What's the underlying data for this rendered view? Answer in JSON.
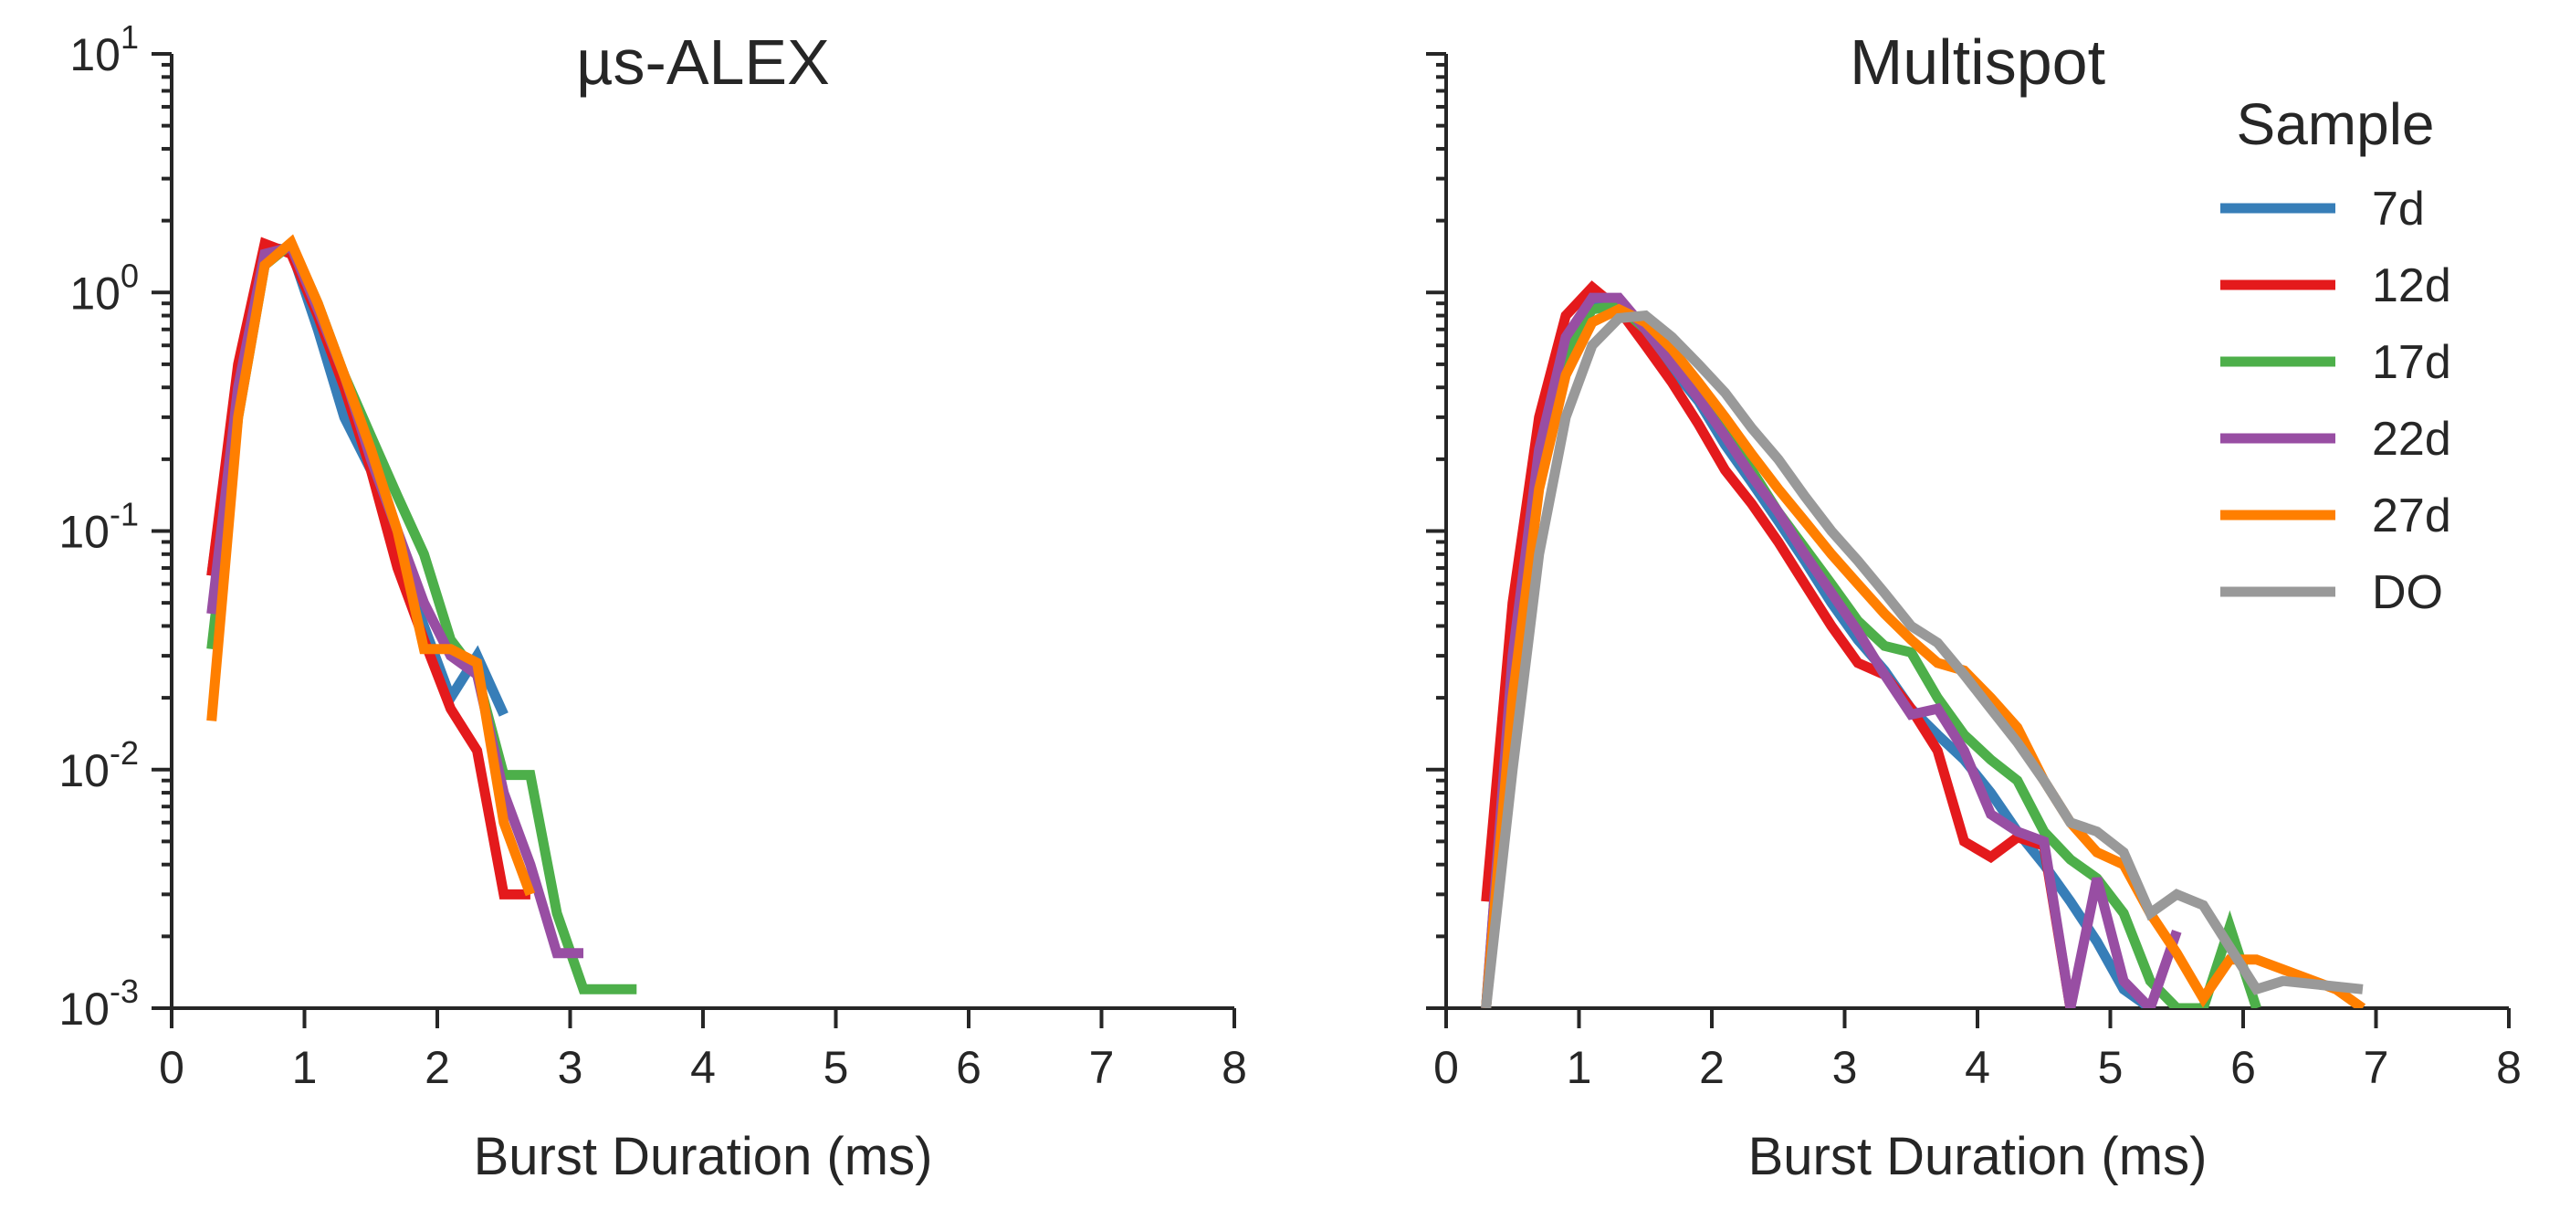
{
  "chart_data": [
    {
      "type": "line",
      "title": "µs-ALEX",
      "xlabel": "Burst Duration (ms)",
      "ylabel": "",
      "xlim": [
        0,
        8
      ],
      "ylim": [
        0.001,
        10
      ],
      "yscale": "log",
      "xticks": [
        0,
        1,
        2,
        3,
        4,
        5,
        6,
        7,
        8
      ],
      "yticks": [
        {
          "value": 10,
          "base": "10",
          "exp": "1"
        },
        {
          "value": 1,
          "base": "10",
          "exp": "0"
        },
        {
          "value": 0.1,
          "base": "10",
          "exp": "-1"
        },
        {
          "value": 0.01,
          "base": "10",
          "exp": "-2"
        },
        {
          "value": 0.001,
          "base": "10",
          "exp": "-3"
        }
      ],
      "series": [
        {
          "color": "#377eb8",
          "x": [
            0.3,
            0.5,
            0.7,
            0.9,
            1.1,
            1.3,
            1.5,
            1.7,
            1.9,
            2.1,
            2.3,
            2.5
          ],
          "y": [
            0.065,
            0.45,
            1.55,
            1.5,
            0.7,
            0.3,
            0.18,
            0.08,
            0.04,
            0.02,
            0.03,
            0.017
          ]
        },
        {
          "color": "#e41a1c",
          "x": [
            0.3,
            0.5,
            0.7,
            0.9,
            1.1,
            1.3,
            1.5,
            1.7,
            1.9,
            2.1,
            2.3,
            2.5,
            2.7
          ],
          "y": [
            0.065,
            0.5,
            1.6,
            1.45,
            0.8,
            0.4,
            0.18,
            0.07,
            0.035,
            0.018,
            0.012,
            0.003,
            0.003
          ]
        },
        {
          "color": "#4daf4a",
          "x": [
            0.3,
            0.5,
            0.7,
            0.9,
            1.1,
            1.3,
            1.5,
            1.7,
            1.9,
            2.1,
            2.3,
            2.5,
            2.7,
            2.9,
            3.1,
            3.3,
            3.5
          ],
          "y": [
            0.032,
            0.3,
            1.3,
            1.6,
            0.9,
            0.45,
            0.25,
            0.14,
            0.08,
            0.035,
            0.025,
            0.0095,
            0.0095,
            0.0025,
            0.0012,
            0.0012,
            0.0012
          ]
        },
        {
          "color": "#984ea3",
          "x": [
            0.3,
            0.5,
            0.7,
            0.9,
            1.1,
            1.3,
            1.5,
            1.7,
            1.9,
            2.1,
            2.3,
            2.5,
            2.7,
            2.9,
            3.1
          ],
          "y": [
            0.045,
            0.4,
            1.45,
            1.55,
            0.85,
            0.45,
            0.2,
            0.1,
            0.05,
            0.03,
            0.025,
            0.008,
            0.004,
            0.0017,
            0.0017
          ]
        },
        {
          "color": "#ff7f00",
          "x": [
            0.3,
            0.5,
            0.7,
            0.9,
            1.1,
            1.3,
            1.5,
            1.7,
            1.9,
            2.1,
            2.3,
            2.5,
            2.7
          ],
          "y": [
            0.016,
            0.3,
            1.3,
            1.62,
            0.9,
            0.45,
            0.22,
            0.1,
            0.032,
            0.032,
            0.028,
            0.006,
            0.003
          ]
        }
      ]
    },
    {
      "type": "line",
      "title": "Multispot",
      "xlabel": "Burst Duration (ms)",
      "ylabel": "",
      "xlim": [
        0,
        8
      ],
      "ylim": [
        0.001,
        10
      ],
      "yscale": "log",
      "xticks": [
        0,
        1,
        2,
        3,
        4,
        5,
        6,
        7,
        8
      ],
      "legend": {
        "title": "Sample",
        "position": "top-right"
      },
      "series": [
        {
          "name": "7d",
          "color": "#377eb8",
          "x": [
            0.3,
            0.5,
            0.7,
            0.9,
            1.1,
            1.3,
            1.5,
            1.7,
            1.9,
            2.1,
            2.3,
            2.5,
            2.7,
            2.9,
            3.1,
            3.3,
            3.5,
            3.7,
            3.9,
            4.1,
            4.3,
            4.5,
            4.7,
            4.9,
            5.1,
            5.3
          ],
          "y": [
            0.001,
            0.03,
            0.25,
            0.6,
            0.9,
            0.85,
            0.65,
            0.48,
            0.35,
            0.23,
            0.16,
            0.11,
            0.075,
            0.05,
            0.035,
            0.026,
            0.018,
            0.014,
            0.011,
            0.008,
            0.0055,
            0.004,
            0.0028,
            0.0019,
            0.0012,
            0.001
          ]
        },
        {
          "name": "12d",
          "color": "#e41a1c",
          "x": [
            0.3,
            0.5,
            0.7,
            0.9,
            1.1,
            1.3,
            1.5,
            1.7,
            1.9,
            2.1,
            2.3,
            2.5,
            2.7,
            2.9,
            3.1,
            3.3,
            3.5,
            3.7,
            3.9,
            4.1,
            4.3,
            4.5,
            4.7
          ],
          "y": [
            0.0028,
            0.05,
            0.3,
            0.8,
            1.05,
            0.85,
            0.6,
            0.42,
            0.28,
            0.18,
            0.13,
            0.09,
            0.06,
            0.04,
            0.028,
            0.025,
            0.018,
            0.012,
            0.005,
            0.0043,
            0.0052,
            0.0048,
            0.001
          ]
        },
        {
          "name": "17d",
          "color": "#4daf4a",
          "x": [
            0.3,
            0.5,
            0.7,
            0.9,
            1.1,
            1.3,
            1.5,
            1.7,
            1.9,
            2.1,
            2.3,
            2.5,
            2.7,
            2.9,
            3.1,
            3.3,
            3.5,
            3.7,
            3.9,
            4.1,
            4.3,
            4.5,
            4.7,
            4.9,
            5.1,
            5.3,
            5.5,
            5.7,
            5.9,
            6.1
          ],
          "y": [
            0.001,
            0.02,
            0.18,
            0.55,
            0.85,
            0.88,
            0.7,
            0.5,
            0.37,
            0.26,
            0.18,
            0.12,
            0.085,
            0.06,
            0.042,
            0.033,
            0.031,
            0.02,
            0.014,
            0.011,
            0.009,
            0.0055,
            0.0042,
            0.0035,
            0.0025,
            0.0013,
            0.001,
            0.001,
            0.0022,
            0.001
          ]
        },
        {
          "name": "22d",
          "color": "#984ea3",
          "x": [
            0.3,
            0.5,
            0.7,
            0.9,
            1.1,
            1.3,
            1.5,
            1.7,
            1.9,
            2.1,
            2.3,
            2.5,
            2.7,
            2.9,
            3.1,
            3.3,
            3.5,
            3.7,
            3.9,
            4.1,
            4.3,
            4.5,
            4.7,
            4.9,
            5.1,
            5.3,
            5.5
          ],
          "y": [
            0.001,
            0.03,
            0.22,
            0.65,
            0.95,
            0.95,
            0.7,
            0.5,
            0.36,
            0.25,
            0.17,
            0.12,
            0.08,
            0.055,
            0.038,
            0.025,
            0.017,
            0.018,
            0.012,
            0.0065,
            0.0055,
            0.005,
            0.001,
            0.0035,
            0.0013,
            0.001,
            0.0021
          ]
        },
        {
          "name": "27d",
          "color": "#ff7f00",
          "x": [
            0.3,
            0.5,
            0.7,
            0.9,
            1.1,
            1.3,
            1.5,
            1.7,
            1.9,
            2.1,
            2.3,
            2.5,
            2.7,
            2.9,
            3.1,
            3.3,
            3.5,
            3.7,
            3.9,
            4.1,
            4.3,
            4.5,
            4.7,
            4.9,
            5.1,
            5.3,
            5.5,
            5.7,
            5.9,
            6.1,
            6.7,
            6.9
          ],
          "y": [
            0.001,
            0.02,
            0.15,
            0.45,
            0.75,
            0.85,
            0.75,
            0.58,
            0.42,
            0.3,
            0.21,
            0.15,
            0.11,
            0.08,
            0.06,
            0.045,
            0.035,
            0.028,
            0.026,
            0.02,
            0.015,
            0.009,
            0.006,
            0.0045,
            0.004,
            0.0025,
            0.0017,
            0.0011,
            0.0016,
            0.0016,
            0.0012,
            0.001
          ]
        },
        {
          "name": "DO",
          "color": "#999999",
          "x": [
            0.3,
            0.5,
            0.7,
            0.9,
            1.1,
            1.3,
            1.5,
            1.7,
            1.9,
            2.1,
            2.3,
            2.5,
            2.7,
            2.9,
            3.1,
            3.3,
            3.5,
            3.7,
            3.9,
            4.1,
            4.3,
            4.5,
            4.7,
            4.9,
            5.1,
            5.3,
            5.5,
            5.7,
            5.9,
            6.1,
            6.3,
            6.9
          ],
          "y": [
            0.001,
            0.01,
            0.08,
            0.3,
            0.6,
            0.78,
            0.8,
            0.65,
            0.5,
            0.38,
            0.27,
            0.2,
            0.14,
            0.1,
            0.075,
            0.055,
            0.04,
            0.034,
            0.025,
            0.018,
            0.013,
            0.009,
            0.006,
            0.0055,
            0.0045,
            0.0025,
            0.003,
            0.0027,
            0.0018,
            0.0012,
            0.0013,
            0.0012
          ]
        }
      ]
    }
  ]
}
